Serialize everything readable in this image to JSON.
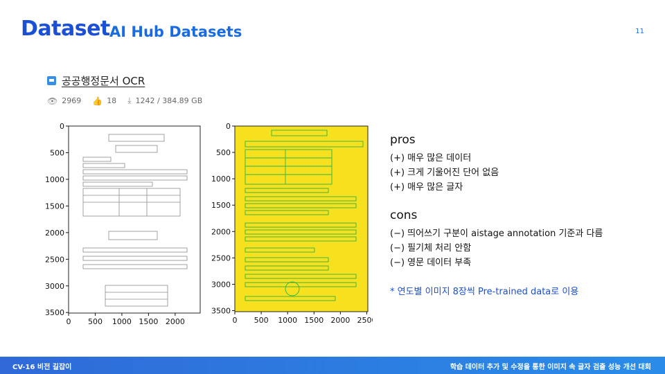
{
  "header": {
    "title": "Dataset",
    "subtitle": "AI Hub Datasets",
    "page_number": "11"
  },
  "dataset": {
    "name": "공공행정문서 OCR",
    "icon": "dataset-icon",
    "views": "2969",
    "likes": "18",
    "downloads": "1242 / 384.89 GB"
  },
  "plots": {
    "left": {
      "x_ticks": [
        "0",
        "500",
        "1000",
        "1500",
        "2000"
      ],
      "y_ticks": [
        "0",
        "500",
        "1000",
        "1500",
        "2000",
        "2500",
        "3000",
        "3500"
      ]
    },
    "right": {
      "x_ticks": [
        "0",
        "500",
        "1000",
        "1500",
        "2000",
        "2500"
      ],
      "y_ticks": [
        "0",
        "500",
        "1000",
        "1500",
        "2000",
        "2500",
        "3000",
        "3500"
      ]
    }
  },
  "pros": {
    "heading": "pros",
    "items": [
      "(+)  매우 많은 데이터",
      "(+)  크게 기울어진 단어 없음",
      "(+)  매우 많은 글자"
    ]
  },
  "cons": {
    "heading": "cons",
    "items": [
      "(−)  띄어쓰기 구분이 aistage annotation 기준과 다름",
      "(−)  필기체 처리 안함",
      "(−)  영문 데이터 부족"
    ]
  },
  "note": "* 연도별 이미지 8장씩 Pre-trained data로 이용",
  "footer": {
    "left": "CV-16 비전 길잡이",
    "right": "학습 데이터 추가 및 수정을 통한 이미지 속 글자 검출 성능 개선 대회"
  },
  "colors": {
    "accent": "#1a4fd6",
    "highlight": "#f7e11e",
    "box": "#2ab34a"
  }
}
